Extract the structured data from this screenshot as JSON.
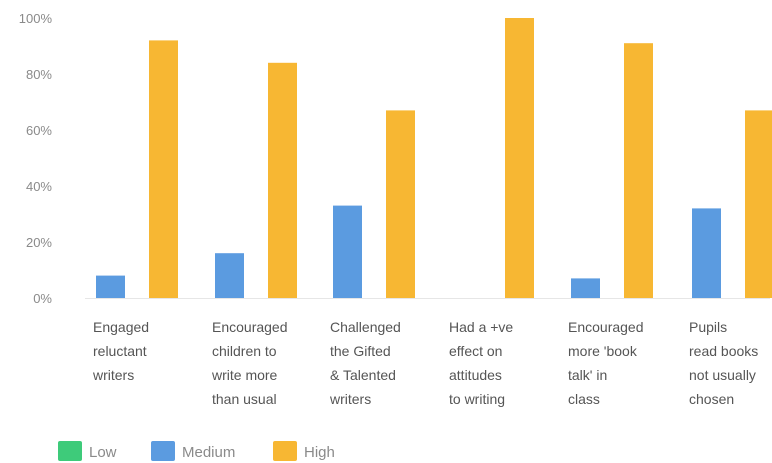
{
  "chart_data": {
    "type": "bar",
    "categories": [
      [
        "Engaged",
        "reluctant",
        "writers"
      ],
      [
        "Encouraged",
        "children to",
        "write more",
        "than usual"
      ],
      [
        "Challenged",
        "the Gifted",
        "& Talented",
        "writers"
      ],
      [
        "Had a +ve",
        "effect on",
        "attitudes",
        "to writing"
      ],
      [
        "Encouraged",
        "more 'book",
        "talk' in",
        "class"
      ],
      [
        "Pupils",
        "read books",
        "not usually",
        "chosen"
      ]
    ],
    "series": [
      {
        "name": "Low",
        "color": "#3ecb7a",
        "values": [
          0,
          0,
          0,
          0,
          0,
          0
        ]
      },
      {
        "name": "Medium",
        "color": "#5b9be0",
        "values": [
          8,
          16,
          33,
          0,
          7,
          32
        ]
      },
      {
        "name": "High",
        "color": "#f7b733",
        "values": [
          92,
          84,
          67,
          100,
          91,
          67
        ]
      }
    ],
    "yticks": [
      "0%",
      "20%",
      "40%",
      "60%",
      "80%",
      "100%"
    ],
    "ylim": [
      0,
      100
    ],
    "grid": false,
    "legend_position": "bottom-left"
  }
}
